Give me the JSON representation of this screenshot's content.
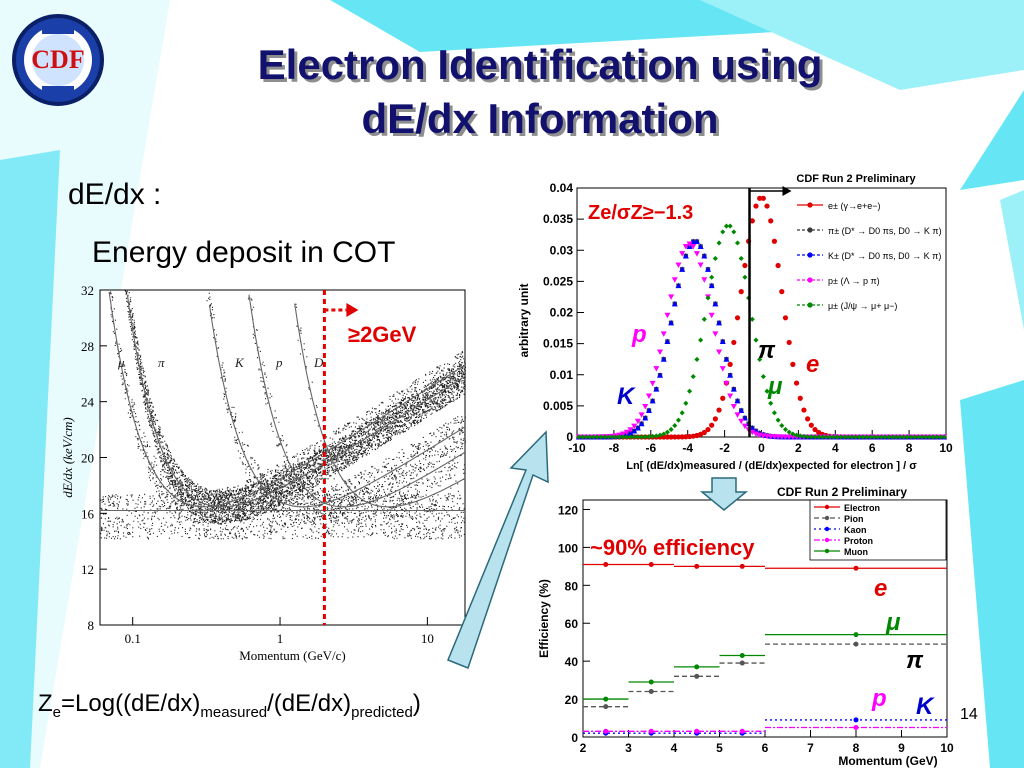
{
  "slide": {
    "title_line1": "Electron Identification using",
    "title_line2": "dE/dx Information",
    "bullet1": "dE/dx :",
    "bullet2": "Energy deposit in COT",
    "formula": {
      "p1": "Z",
      "sub1": "e",
      "p2": "=Log((dE/dx)",
      "sub2": "measured",
      "p3": "/(dE/dx)",
      "sub3": "predicted",
      "p4": ")"
    },
    "page_number": "14",
    "logo_text": "CDF",
    "colors": {
      "title": "#12126e",
      "cyan": "#66e6f4",
      "red": "#e00000"
    }
  },
  "chart_data": [
    {
      "type": "scatter",
      "xlabel": "Momentum (GeV/c)",
      "ylabel": "dE/dx (keV/cm)",
      "xscale": "log",
      "xlim": [
        0.06,
        18
      ],
      "ylim": [
        8,
        32
      ],
      "x_ticks": [
        "0.1",
        "1",
        "10"
      ],
      "y_ticks": [
        "8",
        "12",
        "16",
        "20",
        "24",
        "28",
        "32"
      ],
      "band_labels": [
        "μ",
        "π",
        "K",
        "p",
        "D"
      ],
      "cut_label": "≥2GeV",
      "cut_momentum": 2,
      "description_of_bands": "particle bands mu, pi, K, p, D converging to minimum-ionizing plateau near 12-16 keV/cm"
    },
    {
      "type": "line",
      "title": "CDF Run 2 Preliminary",
      "ylabel": "arbitrary unit",
      "xlabel": "Ln[ (dE/dx)measured / (dE/dx)expected for electron ] / σ",
      "xlim": [
        -10,
        10
      ],
      "ylim": [
        0,
        0.04
      ],
      "x_ticks": [
        "-10",
        "-8",
        "-6",
        "-4",
        "-2",
        "0",
        "2",
        "4",
        "6",
        "8",
        "10"
      ],
      "y_ticks": [
        "0",
        "0.005",
        "0.01",
        "0.015",
        "0.02",
        "0.025",
        "0.03",
        "0.035",
        "0.04"
      ],
      "cut_label": "Ze/σZ≥−1.3",
      "cut_x": -1.3,
      "legend": [
        "e± (γ→e+e−)",
        "π± (D* → D0 πs, D0 → K π)",
        "K± (D* → D0 πs, D0 → K π)",
        "p± (Λ → p π)",
        "μ± (J/ψ → μ+ μ−)"
      ],
      "series": [
        {
          "name": "e",
          "label": "e",
          "color": "#e00000",
          "mean": 0,
          "sigma": 1.1,
          "peak": 0.0385
        },
        {
          "name": "pi",
          "label": "π",
          "color": "#3a3a3a",
          "mean": -3.6,
          "sigma": 1.25,
          "peak": 0.0315
        },
        {
          "name": "K",
          "label": "K",
          "color": "#0000ff",
          "mean": -3.6,
          "sigma": 1.25,
          "peak": 0.0315
        },
        {
          "name": "p",
          "label": "p",
          "color": "#ff00ff",
          "mean": -3.9,
          "sigma": 1.25,
          "peak": 0.031
        },
        {
          "name": "mu",
          "label": "μ",
          "color": "#008800",
          "mean": -1.8,
          "sigma": 1.2,
          "peak": 0.034
        }
      ]
    },
    {
      "type": "line",
      "title": "CDF Run 2 Preliminary",
      "ylabel": "Efficiency (%)",
      "xlabel": "Momentum (GeV)",
      "xlim": [
        2,
        10
      ],
      "ylim": [
        0,
        125
      ],
      "x_ticks": [
        "2",
        "3",
        "4",
        "5",
        "6",
        "7",
        "8",
        "9",
        "10"
      ],
      "y_ticks": [
        "0",
        "20",
        "40",
        "60",
        "80",
        "100",
        "120"
      ],
      "annotation": "~90% efficiency",
      "legend": [
        "Electron",
        "Pion",
        "Kaon",
        "Proton",
        "Muon"
      ],
      "series": [
        {
          "name": "Electron",
          "label": "e",
          "color": "#e00000",
          "dash": "",
          "bins": [
            [
              2,
              3
            ],
            [
              3,
              4
            ],
            [
              4,
              5
            ],
            [
              5,
              6
            ],
            [
              6,
              10
            ]
          ],
          "x": [
            2.5,
            3.5,
            4.5,
            5.5,
            8
          ],
          "values": [
            91,
            91,
            90,
            90,
            89
          ]
        },
        {
          "name": "Pion",
          "label": "π",
          "color": "#555555",
          "dash": "5,3",
          "bins": [
            [
              2,
              3
            ],
            [
              3,
              4
            ],
            [
              4,
              5
            ],
            [
              5,
              6
            ],
            [
              6,
              10
            ]
          ],
          "x": [
            2.5,
            3.5,
            4.5,
            5.5,
            8
          ],
          "values": [
            16,
            24,
            32,
            39,
            49
          ]
        },
        {
          "name": "Kaon",
          "label": "K",
          "color": "#0000ff",
          "dash": "2,3",
          "bins": [
            [
              2,
              3
            ],
            [
              3,
              4
            ],
            [
              4,
              5
            ],
            [
              5,
              6
            ],
            [
              6,
              10
            ]
          ],
          "x": [
            2.5,
            3.5,
            4.5,
            5.5,
            8
          ],
          "values": [
            2,
            2,
            2,
            2,
            9
          ]
        },
        {
          "name": "Proton",
          "label": "p",
          "color": "#ff00ff",
          "dash": "6,2,2,2",
          "bins": [
            [
              2,
              3
            ],
            [
              3,
              4
            ],
            [
              4,
              5
            ],
            [
              5,
              6
            ],
            [
              6,
              10
            ]
          ],
          "x": [
            2.5,
            3.5,
            4.5,
            5.5,
            8
          ],
          "values": [
            3,
            3,
            3,
            3,
            5
          ]
        },
        {
          "name": "Muon",
          "label": "μ",
          "color": "#008800",
          "dash": "",
          "bins": [
            [
              2,
              3
            ],
            [
              3,
              4
            ],
            [
              4,
              5
            ],
            [
              5,
              6
            ],
            [
              6,
              10
            ]
          ],
          "x": [
            2.5,
            3.5,
            4.5,
            5.5,
            8
          ],
          "values": [
            20,
            29,
            37,
            43,
            54
          ]
        }
      ]
    }
  ]
}
